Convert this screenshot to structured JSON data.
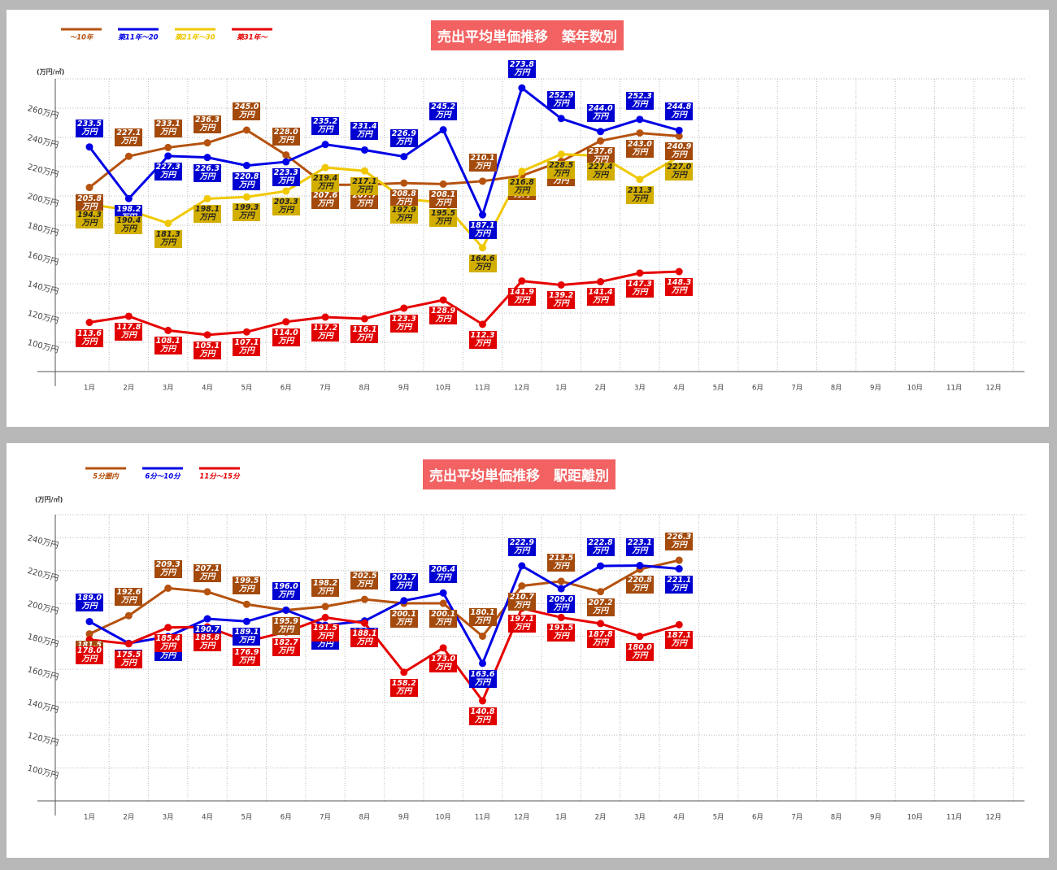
{
  "chart_data": [
    {
      "type": "line",
      "title": "売出平均単価推移　築年数別",
      "y_label": "(万円/㎡)",
      "categories": [
        "1月",
        "2月",
        "3月",
        "4月",
        "5月",
        "6月",
        "7月",
        "8月",
        "9月",
        "10月",
        "11月",
        "12月",
        "1月",
        "2月",
        "3月",
        "4月",
        "5月",
        "6月",
        "7月",
        "8月",
        "9月",
        "10月",
        "11月",
        "12月"
      ],
      "ylim": [
        80,
        280
      ],
      "yticks": [
        {
          "value": 100,
          "label": "100万円"
        },
        {
          "value": 120,
          "label": "120万円"
        },
        {
          "value": 140,
          "label": "140万円"
        },
        {
          "value": 160,
          "label": "160万円"
        },
        {
          "value": 180,
          "label": "180万円"
        },
        {
          "value": 200,
          "label": "200万円"
        },
        {
          "value": 220,
          "label": "220万円"
        },
        {
          "value": 240,
          "label": "240万円"
        },
        {
          "value": 260,
          "label": "260万円"
        }
      ],
      "grid": true,
      "legend": "top-left",
      "series": [
        {
          "name": "～10年",
          "color": "#b5520f",
          "label_color": "#a34a0c",
          "label_text": "#ffffff",
          "values": [
            205.8,
            227.1,
            233.1,
            236.3,
            245.0,
            228.0,
            207.6,
            207.7,
            208.8,
            208.1,
            210.1,
            213.9,
            223.6,
            237.6,
            243.0,
            240.9,
            null,
            null,
            null,
            null,
            null,
            null,
            null,
            null
          ],
          "value_labels": [
            "205.8万円",
            "227.1万円",
            "233.1万円",
            "236.3万円",
            "245.0万円",
            "228.0万円",
            "207.6万円",
            "207.7万円",
            "208.8万円",
            "208.1万円",
            "210.1万円",
            "213.9万円",
            "223.6万円",
            "237.6万円",
            "243.0万円",
            "240.9万円",
            null,
            null,
            null,
            null,
            null,
            null,
            null,
            null
          ]
        },
        {
          "name": "築11年～20",
          "color": "#0000e6",
          "label_color": "#0000d0",
          "label_text": "#ffffff",
          "values": [
            233.5,
            198.2,
            227.3,
            226.3,
            220.8,
            223.3,
            235.2,
            231.4,
            226.9,
            245.2,
            187.1,
            273.8,
            252.9,
            244.0,
            252.3,
            244.8,
            null,
            null,
            null,
            null,
            null,
            null,
            null,
            null
          ],
          "value_labels": [
            "233.5万円",
            "198.2万円",
            "227.3万円",
            "226.3万円",
            "220.8万円",
            "223.3万円",
            "235.2万円",
            "231.4万円",
            "226.9万円",
            "245.2万円",
            "187.1万円",
            "273.8万円",
            "252.9万円",
            "244.0万円",
            "252.3万円",
            "244.8万円",
            null,
            null,
            null,
            null,
            null,
            null,
            null,
            null
          ]
        },
        {
          "name": "築21年～30",
          "color": "#f0c800",
          "label_color": "#d2ae00",
          "label_text": "#222222",
          "values": [
            194.3,
            190.4,
            181.3,
            198.1,
            199.3,
            203.3,
            219.4,
            217.1,
            197.9,
            195.5,
            164.6,
            216.8,
            228.5,
            227.4,
            211.3,
            227.0,
            null,
            null,
            null,
            null,
            null,
            null,
            null,
            null
          ],
          "value_labels": [
            "194.3万円",
            "190.4万円",
            "181.3万円",
            "198.1万円",
            "199.3万円",
            "203.3万円",
            "219.4万円",
            "217.1万円",
            "197.9万円",
            "195.5万円",
            "164.6万円",
            "216.8万円",
            "228.5万円",
            "227.4万円",
            "211.3万円",
            "227.0万円",
            null,
            null,
            null,
            null,
            null,
            null,
            null,
            null
          ]
        },
        {
          "name": "築31年～",
          "color": "#e60000",
          "label_color": "#e00000",
          "label_text": "#ffffff",
          "values": [
            113.6,
            117.8,
            108.1,
            105.1,
            107.1,
            114.0,
            117.2,
            116.1,
            123.3,
            128.9,
            112.3,
            141.9,
            139.2,
            141.4,
            147.3,
            148.3,
            null,
            null,
            null,
            null,
            null,
            null,
            null,
            null
          ],
          "value_labels": [
            "113.6万円",
            "117.8万円",
            "108.1万円",
            "105.1万円",
            "107.1万円",
            "114.0万円",
            "117.2万円",
            "116.1万円",
            "123.3万円",
            "128.9万円",
            "112.3万円",
            "141.9万円",
            "139.2万円",
            "141.4万円",
            "147.3万円",
            "148.3万円",
            null,
            null,
            null,
            null,
            null,
            null,
            null,
            null
          ]
        }
      ]
    },
    {
      "type": "line",
      "title": "売出平均単価推移　駅距離別",
      "y_label": "(万円/㎡)",
      "categories": [
        "1月",
        "2月",
        "3月",
        "4月",
        "5月",
        "6月",
        "7月",
        "8月",
        "9月",
        "10月",
        "11月",
        "12月",
        "1月",
        "2月",
        "3月",
        "4月",
        "5月",
        "6月",
        "7月",
        "8月",
        "9月",
        "10月",
        "11月",
        "12月"
      ],
      "ylim": [
        80,
        254
      ],
      "yticks": [
        {
          "value": 100,
          "label": "100万円"
        },
        {
          "value": 120,
          "label": "120万円"
        },
        {
          "value": 140,
          "label": "140万円"
        },
        {
          "value": 160,
          "label": "160万円"
        },
        {
          "value": 180,
          "label": "180万円"
        },
        {
          "value": 200,
          "label": "200万円"
        },
        {
          "value": 220,
          "label": "220万円"
        },
        {
          "value": 240,
          "label": "240万円"
        }
      ],
      "grid": true,
      "legend": "top-left",
      "series": [
        {
          "name": "5分圏内",
          "color": "#b5520f",
          "label_color": "#a34a0c",
          "label_text": "#ffffff",
          "values": [
            181.5,
            192.6,
            209.3,
            207.1,
            199.5,
            195.9,
            198.2,
            202.5,
            200.1,
            200.1,
            180.1,
            210.7,
            213.5,
            207.2,
            220.8,
            226.3,
            null,
            null,
            null,
            null,
            null,
            null,
            null,
            null
          ],
          "value_labels": [
            "181.5万円",
            "192.6万円",
            "209.3万円",
            "207.1万円",
            "199.5万円",
            "195.9万円",
            "198.2万円",
            "202.5万円",
            "200.1万円",
            "200.1万円",
            "180.1万円",
            "210.7万円",
            "213.5万円",
            "207.2万円",
            "220.8万円",
            "226.3万円",
            null,
            null,
            null,
            null,
            null,
            null,
            null,
            null
          ]
        },
        {
          "name": "6分～10分",
          "color": "#0000e6",
          "label_color": "#0000d0",
          "label_text": "#ffffff",
          "values": [
            189.0,
            175.8,
            179.9,
            190.7,
            189.1,
            196.0,
            186.8,
            189.4,
            201.7,
            206.4,
            163.6,
            222.9,
            209.0,
            222.8,
            223.1,
            221.1,
            null,
            null,
            null,
            null,
            null,
            null,
            null,
            null
          ],
          "value_labels": [
            "189.0万円",
            "175.8万円",
            "179.9万円",
            "190.7万円",
            "189.1万円",
            "196.0万円",
            "186.8万円",
            "189.4万円",
            "201.7万円",
            "206.4万円",
            "163.6万円",
            "222.9万円",
            "209.0万円",
            "222.8万円",
            "223.1万円",
            "221.1万円",
            null,
            null,
            null,
            null,
            null,
            null,
            null,
            null
          ]
        },
        {
          "name": "11分～15分",
          "color": "#e60000",
          "label_color": "#e00000",
          "label_text": "#ffffff",
          "values": [
            178.0,
            175.5,
            185.4,
            185.8,
            176.9,
            182.7,
            191.5,
            188.1,
            158.2,
            173.0,
            140.8,
            197.1,
            191.5,
            187.8,
            180.0,
            187.1,
            null,
            null,
            null,
            null,
            null,
            null,
            null,
            null
          ],
          "value_labels": [
            "178.0万円",
            "175.5万円",
            "185.4万円",
            "185.8万円",
            "176.9万円",
            "182.7万円",
            "191.5万円",
            "188.1万円",
            "158.2万円",
            "173.0万円",
            "140.8万円",
            "197.1万円",
            "191.5万円",
            "187.8万円",
            "180.0万円",
            "187.1万円",
            null,
            null,
            null,
            null,
            null,
            null,
            null,
            null
          ]
        }
      ]
    }
  ]
}
